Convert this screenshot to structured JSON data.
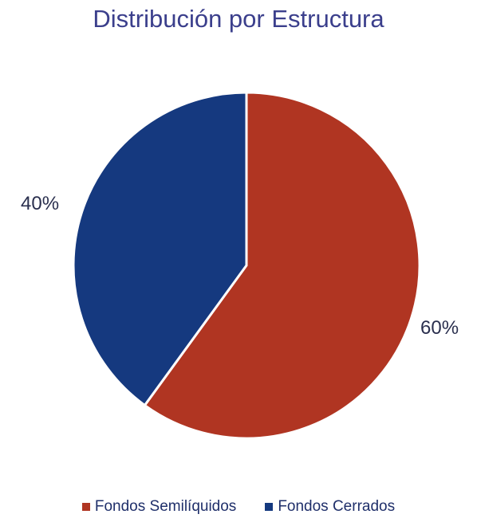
{
  "chart_data": {
    "type": "pie",
    "title": "Distribución por Estructura",
    "categories": [
      "Fondos Semilíquidos",
      "Fondos Cerrados"
    ],
    "values": [
      60,
      40
    ],
    "labels": [
      "60%",
      "40%"
    ],
    "colors": [
      "#b03522",
      "#15397f"
    ],
    "legend_position": "bottom"
  }
}
